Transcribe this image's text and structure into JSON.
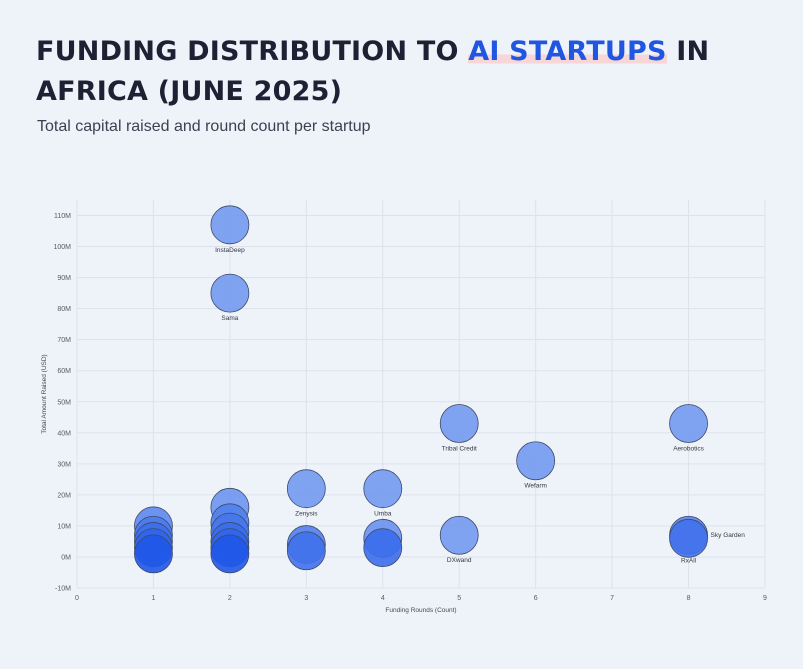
{
  "header": {
    "title_prefix": "FUNDING DISTRIBUTION TO ",
    "title_highlight": "AI STARTUPS",
    "title_suffix": " IN AFRICA (JUNE 2025)",
    "subtitle": "Total capital raised and round count per startup"
  },
  "colors": {
    "accent": "#2157e0",
    "title": "#1c2233",
    "bubble_light": "#8fb0f2",
    "bubble_dark": "#1f56e8",
    "bubble_stroke": "#3d4a6b",
    "grid": "#dde2ea"
  },
  "chart_data": {
    "type": "scatter",
    "title": "FUNDING DISTRIBUTION TO AI STARTUPS IN AFRICA (JUNE 2025)",
    "subtitle": "Total capital raised and round count per startup",
    "xlabel": "Funding Rounds (Count)",
    "ylabel": "Total Amount Raised (USD)",
    "xlim": [
      0,
      9
    ],
    "ylim": [
      -10,
      115
    ],
    "x_ticks": [
      0,
      1,
      2,
      3,
      4,
      5,
      6,
      7,
      8,
      9
    ],
    "y_ticks": [
      -10,
      0,
      10,
      20,
      30,
      40,
      50,
      60,
      70,
      80,
      90,
      100,
      110
    ],
    "y_tick_labels": [
      "-10M",
      "0M",
      "10M",
      "20M",
      "30M",
      "40M",
      "50M",
      "60M",
      "70M",
      "80M",
      "90M",
      "100M",
      "110M"
    ],
    "grid": true,
    "points": [
      {
        "label": "InstaDeep",
        "x": 2,
        "y": 107,
        "intensity": 0.25
      },
      {
        "label": "Sama",
        "x": 2,
        "y": 85,
        "intensity": 0.25
      },
      {
        "label": "Aerobotics",
        "x": 8,
        "y": 43,
        "intensity": 0.25
      },
      {
        "label": "Tribal Credit",
        "x": 5,
        "y": 43,
        "intensity": 0.25
      },
      {
        "label": "Wefarm",
        "x": 6,
        "y": 31,
        "intensity": 0.25
      },
      {
        "label": "Zenysis",
        "x": 3,
        "y": 22,
        "intensity": 0.25
      },
      {
        "label": "Umba",
        "x": 4,
        "y": 22,
        "intensity": 0.25
      },
      {
        "label": "DXwand",
        "x": 5,
        "y": 7,
        "intensity": 0.25
      },
      {
        "label": "Sky Garden",
        "x": 8,
        "y": 7,
        "intensity": 0.5
      },
      {
        "label": "RxAll",
        "x": 8,
        "y": 6,
        "intensity": 0.7
      },
      {
        "label": "",
        "x": 2,
        "y": 16,
        "intensity": 0.3
      },
      {
        "label": "",
        "x": 2,
        "y": 11,
        "intensity": 0.55
      },
      {
        "label": "",
        "x": 2,
        "y": 8,
        "intensity": 0.65
      },
      {
        "label": "",
        "x": 2,
        "y": 5,
        "intensity": 0.75
      },
      {
        "label": "",
        "x": 2,
        "y": 3,
        "intensity": 0.85
      },
      {
        "label": "",
        "x": 2,
        "y": 1,
        "intensity": 1.0
      },
      {
        "label": "",
        "x": 1,
        "y": 10,
        "intensity": 0.45
      },
      {
        "label": "",
        "x": 1,
        "y": 7,
        "intensity": 0.6
      },
      {
        "label": "",
        "x": 1,
        "y": 5,
        "intensity": 0.75
      },
      {
        "label": "",
        "x": 1,
        "y": 3,
        "intensity": 0.85
      },
      {
        "label": "",
        "x": 1,
        "y": 1,
        "intensity": 1.0
      },
      {
        "label": "",
        "x": 3,
        "y": 4,
        "intensity": 0.55
      },
      {
        "label": "",
        "x": 3,
        "y": 2,
        "intensity": 0.7
      },
      {
        "label": "",
        "x": 4,
        "y": 6,
        "intensity": 0.35
      },
      {
        "label": "",
        "x": 4,
        "y": 3,
        "intensity": 0.75
      }
    ]
  }
}
